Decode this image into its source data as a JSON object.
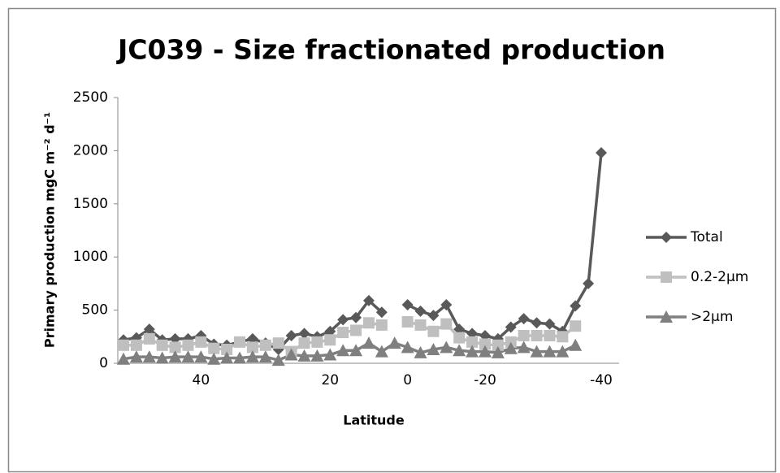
{
  "chart_data": {
    "type": "line",
    "title": "JC039 - Size fractionated production",
    "x_label": "Latitude",
    "y_label": "Primary production mgC m⁻² d⁻¹",
    "categories": [
      null,
      null,
      null,
      null,
      null,
      null,
      "40",
      null,
      null,
      null,
      null,
      null,
      null,
      null,
      null,
      null,
      "20",
      null,
      null,
      null,
      null,
      null,
      "0",
      null,
      null,
      null,
      null,
      null,
      "-20",
      null,
      null,
      null,
      null,
      null,
      null,
      null,
      null,
      "-40"
    ],
    "series": [
      {
        "name": "Total",
        "color": "#595959",
        "marker": "diamond",
        "values": [
          220,
          240,
          320,
          220,
          230,
          230,
          260,
          180,
          170,
          200,
          230,
          190,
          130,
          260,
          280,
          250,
          300,
          410,
          430,
          590,
          480,
          null,
          550,
          490,
          450,
          550,
          320,
          280,
          260,
          230,
          340,
          420,
          380,
          370,
          300,
          540,
          750,
          1980
        ]
      },
      {
        "name": "0.2-2µm",
        "color": "#bfbfbf",
        "marker": "square",
        "values": [
          170,
          170,
          230,
          170,
          150,
          170,
          200,
          140,
          130,
          200,
          150,
          170,
          190,
          110,
          190,
          200,
          220,
          290,
          310,
          380,
          360,
          null,
          390,
          360,
          300,
          370,
          240,
          200,
          180,
          170,
          200,
          260,
          260,
          260,
          250,
          350,
          null,
          null
        ]
      },
      {
        "name": ">2µm",
        "color": "#7f7f7f",
        "marker": "triangle",
        "values": [
          40,
          60,
          60,
          50,
          60,
          60,
          60,
          40,
          50,
          50,
          60,
          60,
          30,
          80,
          70,
          70,
          80,
          120,
          120,
          190,
          110,
          190,
          150,
          100,
          130,
          150,
          120,
          110,
          110,
          100,
          140,
          150,
          110,
          110,
          110,
          170,
          null,
          null
        ]
      }
    ],
    "ylim": [
      0,
      2500
    ],
    "yticks": [
      0,
      500,
      1000,
      1500,
      2000,
      2500
    ],
    "grid": false,
    "legend": "right"
  }
}
